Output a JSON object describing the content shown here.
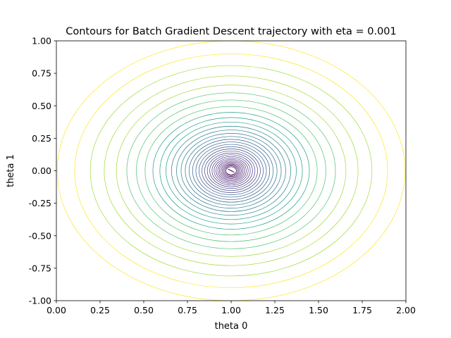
{
  "chart_data": {
    "type": "contour",
    "title": "Contours for Batch Gradient Descent trajectory with eta = 0.001",
    "xlabel": "theta 0",
    "ylabel": "theta 1",
    "xlim": [
      0.0,
      2.0
    ],
    "ylim": [
      -1.0,
      1.0
    ],
    "x_ticks": [
      "0.00",
      "0.25",
      "0.50",
      "0.75",
      "1.00",
      "1.25",
      "1.50",
      "1.75",
      "2.00"
    ],
    "y_ticks": [
      "-1.00",
      "-0.75",
      "-0.50",
      "-0.25",
      "0.00",
      "0.25",
      "0.50",
      "0.75",
      "1.00"
    ],
    "grid": false,
    "colormap": "viridis",
    "center": [
      1.0,
      0.0
    ],
    "contour_radii": [
      1.0,
      0.9,
      0.81,
      0.73,
      0.66,
      0.6,
      0.545,
      0.495,
      0.45,
      0.41,
      0.375,
      0.343,
      0.314,
      0.288,
      0.264,
      0.242,
      0.222,
      0.203,
      0.185,
      0.168,
      0.152,
      0.137,
      0.123,
      0.11,
      0.098,
      0.087,
      0.077,
      0.068,
      0.059,
      0.051,
      0.044,
      0.037,
      0.03
    ],
    "contour_colors": [
      "#fde725",
      "#a0da39",
      "#4ac16d",
      "#1fa187",
      "#277f8e",
      "#2e6f8e",
      "#365c8d",
      "#3f4788",
      "#46327e",
      "#482173",
      "#481a6c",
      "#440154"
    ],
    "trajectory_x": [
      0.982,
      1.018,
      0.985,
      1.015,
      0.988,
      1.012,
      0.991,
      1.009,
      0.994,
      1.006,
      0.997,
      1.003,
      1.0
    ],
    "trajectory_y": [
      0.013,
      -0.012,
      0.011,
      -0.01,
      0.009,
      -0.008,
      0.007,
      -0.006,
      0.005,
      -0.004,
      0.003,
      -0.002,
      0.0
    ],
    "trajectory_color": "#440154"
  }
}
